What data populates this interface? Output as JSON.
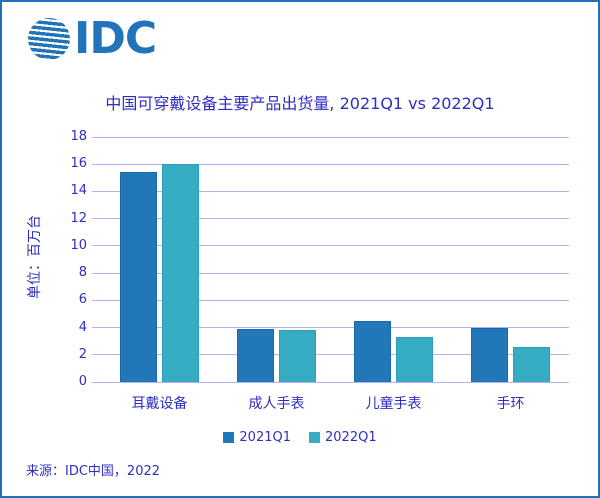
{
  "logo": {
    "text": "IDC",
    "color": "#2173BA"
  },
  "chart_data": {
    "type": "bar",
    "title": "中国可穿戴设备主要产品出货量, 2021Q1 vs 2022Q1",
    "ylabel": "单位：百万台",
    "xlabel": "",
    "categories": [
      "耳戴设备",
      "成人手表",
      "儿童手表",
      "手环"
    ],
    "series": [
      {
        "name": "2021Q1",
        "color": "#2177B8",
        "border_color": "#1A6AAB",
        "values": [
          15.4,
          3.9,
          4.5,
          4.0
        ]
      },
      {
        "name": "2022Q1",
        "color": "#36ACC3",
        "border_color": "#2C9FB6",
        "values": [
          16.0,
          3.8,
          3.3,
          2.6
        ]
      }
    ],
    "ylim": [
      0,
      18
    ],
    "ytick_step": 2,
    "grid": true,
    "grid_color": "#B4B4EC",
    "legend_position": "bottom",
    "text_color": "#2E2EC2"
  },
  "source": {
    "label": "来源：IDC中国，2022"
  }
}
